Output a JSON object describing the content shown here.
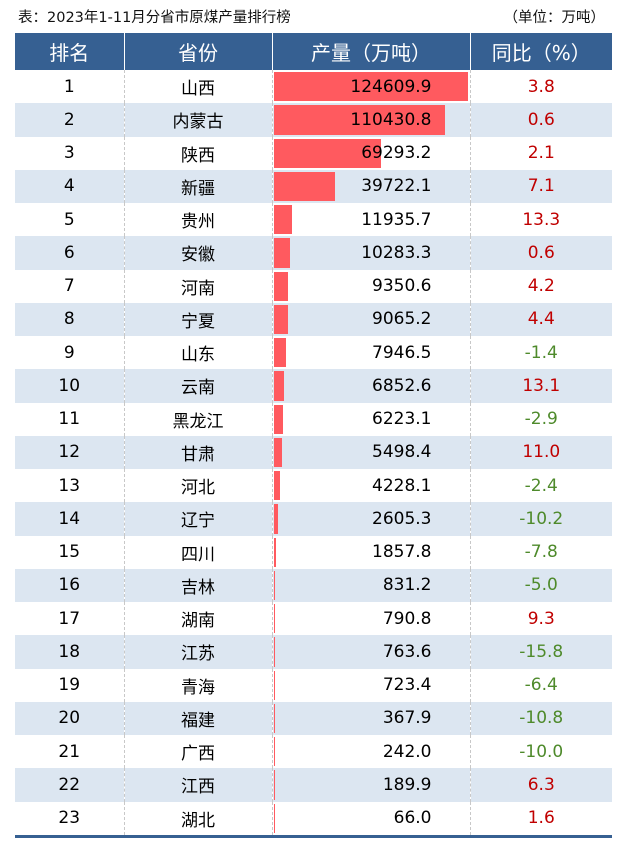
{
  "title": "表：2023年1-11月分省市原煤产量排行榜",
  "unit": "（单位：万吨）",
  "colors": {
    "header": "#366092",
    "bar": "#ff5a5f",
    "positive": "#c00000",
    "negative": "#4e8a2b",
    "alt_row": "#dce6f1"
  },
  "chart_data": {
    "type": "table",
    "columns": [
      "排名",
      "省份",
      "产量（万吨）",
      "同比（%）"
    ],
    "rows": [
      {
        "rank": "1",
        "province": "山西",
        "production": 124609.9,
        "yoy": 3.8
      },
      {
        "rank": "2",
        "province": "内蒙古",
        "production": 110430.8,
        "yoy": 0.6
      },
      {
        "rank": "3",
        "province": "陕西",
        "production": 69293.2,
        "yoy": 2.1
      },
      {
        "rank": "4",
        "province": "新疆",
        "production": 39722.1,
        "yoy": 7.1
      },
      {
        "rank": "5",
        "province": "贵州",
        "production": 11935.7,
        "yoy": 13.3
      },
      {
        "rank": "6",
        "province": "安徽",
        "production": 10283.3,
        "yoy": 0.6
      },
      {
        "rank": "7",
        "province": "河南",
        "production": 9350.6,
        "yoy": 4.2
      },
      {
        "rank": "8",
        "province": "宁夏",
        "production": 9065.2,
        "yoy": 4.4
      },
      {
        "rank": "9",
        "province": "山东",
        "production": 7946.5,
        "yoy": -1.4
      },
      {
        "rank": "10",
        "province": "云南",
        "production": 6852.6,
        "yoy": 13.1
      },
      {
        "rank": "11",
        "province": "黑龙江",
        "production": 6223.1,
        "yoy": -2.9
      },
      {
        "rank": "12",
        "province": "甘肃",
        "production": 5498.4,
        "yoy": 11.0
      },
      {
        "rank": "13",
        "province": "河北",
        "production": 4228.1,
        "yoy": -2.4
      },
      {
        "rank": "14",
        "province": "辽宁",
        "production": 2605.3,
        "yoy": -10.2
      },
      {
        "rank": "15",
        "province": "四川",
        "production": 1857.8,
        "yoy": -7.8
      },
      {
        "rank": "16",
        "province": "吉林",
        "production": 831.2,
        "yoy": -5.0
      },
      {
        "rank": "17",
        "province": "湖南",
        "production": 790.8,
        "yoy": 9.3
      },
      {
        "rank": "18",
        "province": "江苏",
        "production": 763.6,
        "yoy": -15.8
      },
      {
        "rank": "19",
        "province": "青海",
        "production": 723.4,
        "yoy": -6.4
      },
      {
        "rank": "20",
        "province": "福建",
        "production": 367.9,
        "yoy": -10.8
      },
      {
        "rank": "21",
        "province": "广西",
        "production": 242.0,
        "yoy": -10.0
      },
      {
        "rank": "22",
        "province": "江西",
        "production": 189.9,
        "yoy": 6.3
      },
      {
        "rank": "23",
        "province": "湖北",
        "production": 66.0,
        "yoy": 1.6
      }
    ]
  }
}
